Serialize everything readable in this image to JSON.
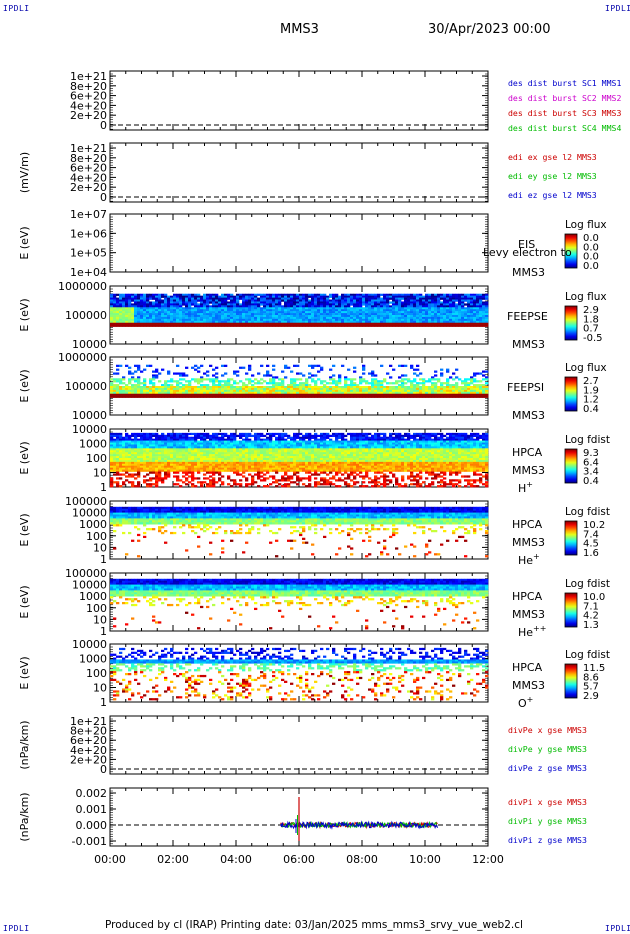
{
  "corners": [
    "IPDLI",
    "IPDLI",
    "IPDLI",
    "IPDLI"
  ],
  "header": {
    "spacecraft": "MMS3",
    "datetime": "30/Apr/2023 00:00"
  },
  "footer": "Produced by cl (IRAP)   Printing date: 03/Jan/2025   mms_mms3_srvy_vue_web2.cl",
  "overlay_text": "Levy electron to",
  "colors": {
    "c1": "#0000cc",
    "c2": "#cc00cc",
    "c3": "#cc0000",
    "c4": "#00bb00",
    "dashed": "#000000"
  },
  "chart_data": {
    "type": "multi-panel",
    "x_axis": {
      "range": [
        "00:00",
        "12:00"
      ],
      "ticks": [
        "00:00",
        "02:00",
        "04:00",
        "06:00",
        "08:00",
        "10:00",
        "12:00"
      ]
    },
    "panels": [
      {
        "kind": "line",
        "ylabel": "",
        "yticks": [
          "1e+21",
          "8e+20",
          "6e+20",
          "4e+20",
          "2e+20",
          "0"
        ],
        "legend": [
          {
            "text": "des dist burst SC1 MMS1",
            "color": "#0000cc"
          },
          {
            "text": "des dist burst SC2 MMS2",
            "color": "#cc00cc"
          },
          {
            "text": "des dist burst SC3 MMS3",
            "color": "#cc0000"
          },
          {
            "text": "des dist burst SC4 MMS4",
            "color": "#00bb00"
          }
        ]
      },
      {
        "kind": "line",
        "ylabel": "(mV/m)",
        "yticks": [
          "1e+21",
          "8e+20",
          "6e+20",
          "4e+20",
          "2e+20",
          "0"
        ],
        "legend": [
          {
            "text": "edi ex gse l2 MMS3",
            "color": "#cc0000"
          },
          {
            "text": "edi ey gse l2 MMS3",
            "color": "#00bb00"
          },
          {
            "text": "edi ez gse l2 MMS3",
            "color": "#0000cc"
          }
        ]
      },
      {
        "kind": "spectrogram",
        "ylabel": "E (eV)",
        "yticks": [
          "1e+07",
          "1e+06",
          "1e+05",
          "1e+04"
        ],
        "labels": [
          "EIS",
          "MMS3"
        ],
        "cbar_title": "Log flux",
        "cbar_ticks": [
          "0.0",
          "0.0",
          "0.0",
          "0.0"
        ],
        "data": "empty"
      },
      {
        "kind": "spectrogram",
        "ylabel": "E (eV)",
        "yticks": [
          "1000000",
          "100000",
          "10000"
        ],
        "labels": [
          "FEEPSE",
          "MMS3"
        ],
        "cbar_title": "Log flux",
        "cbar_ticks": [
          "2.9",
          "1.8",
          "0.7",
          "-0.5"
        ],
        "data": "feepse"
      },
      {
        "kind": "spectrogram",
        "ylabel": "E (eV)",
        "yticks": [
          "1000000",
          "100000",
          "10000"
        ],
        "labels": [
          "FEEPSI",
          "MMS3"
        ],
        "cbar_title": "Log flux",
        "cbar_ticks": [
          "2.7",
          "1.9",
          "1.2",
          "0.4"
        ],
        "data": "feepsi"
      },
      {
        "kind": "spectrogram",
        "ylabel": "E (eV)",
        "yticks": [
          "10000",
          "1000",
          "100",
          "10",
          "1"
        ],
        "labels": [
          "HPCA",
          "MMS3"
        ],
        "species": "H",
        "species_sup": "+",
        "cbar_title": "Log fdist",
        "cbar_ticks": [
          "9.3",
          "6.4",
          "3.4",
          "0.4"
        ],
        "data": "hpca_h"
      },
      {
        "kind": "spectrogram",
        "ylabel": "E (eV)",
        "yticks": [
          "100000",
          "10000",
          "1000",
          "100",
          "10",
          "1"
        ],
        "labels": [
          "HPCA",
          "MMS3"
        ],
        "species": "He",
        "species_sup": "+",
        "cbar_title": "Log fdist",
        "cbar_ticks": [
          "10.2",
          "7.4",
          "4.5",
          "1.6"
        ],
        "data": "hpca_he"
      },
      {
        "kind": "spectrogram",
        "ylabel": "E (eV)",
        "yticks": [
          "100000",
          "10000",
          "1000",
          "100",
          "10",
          "1"
        ],
        "labels": [
          "HPCA",
          "MMS3"
        ],
        "species": "He",
        "species_sup": "++",
        "cbar_title": "Log fdist",
        "cbar_ticks": [
          "10.0",
          "7.1",
          "4.2",
          "1.3"
        ],
        "data": "hpca_he2"
      },
      {
        "kind": "spectrogram",
        "ylabel": "E (eV)",
        "yticks": [
          "10000",
          "1000",
          "100",
          "10",
          "1"
        ],
        "labels": [
          "HPCA",
          "MMS3"
        ],
        "species": "O",
        "species_sup": "+",
        "cbar_title": "Log fdist",
        "cbar_ticks": [
          "11.5",
          "8.6",
          "5.7",
          "2.9"
        ],
        "data": "hpca_o"
      },
      {
        "kind": "line",
        "ylabel": "(nPa/km)",
        "yticks": [
          "1e+21",
          "8e+20",
          "6e+20",
          "4e+20",
          "2e+20",
          "0"
        ],
        "legend": [
          {
            "text": "divPe x gse MMS3",
            "color": "#cc0000"
          },
          {
            "text": "divPe y gse MMS3",
            "color": "#00bb00"
          },
          {
            "text": "divPe z gse MMS3",
            "color": "#0000cc"
          }
        ]
      },
      {
        "kind": "line",
        "ylabel": "(nPa/km)",
        "yticks": [
          "0.002",
          "0.001",
          "0.000",
          "-0.001"
        ],
        "legend": [
          {
            "text": "divPi x gse MMS3",
            "color": "#cc0000"
          },
          {
            "text": "divPi y gse MMS3",
            "color": "#00bb00"
          },
          {
            "text": "divPi z gse MMS3",
            "color": "#0000cc"
          }
        ],
        "data": "divpi"
      }
    ]
  }
}
